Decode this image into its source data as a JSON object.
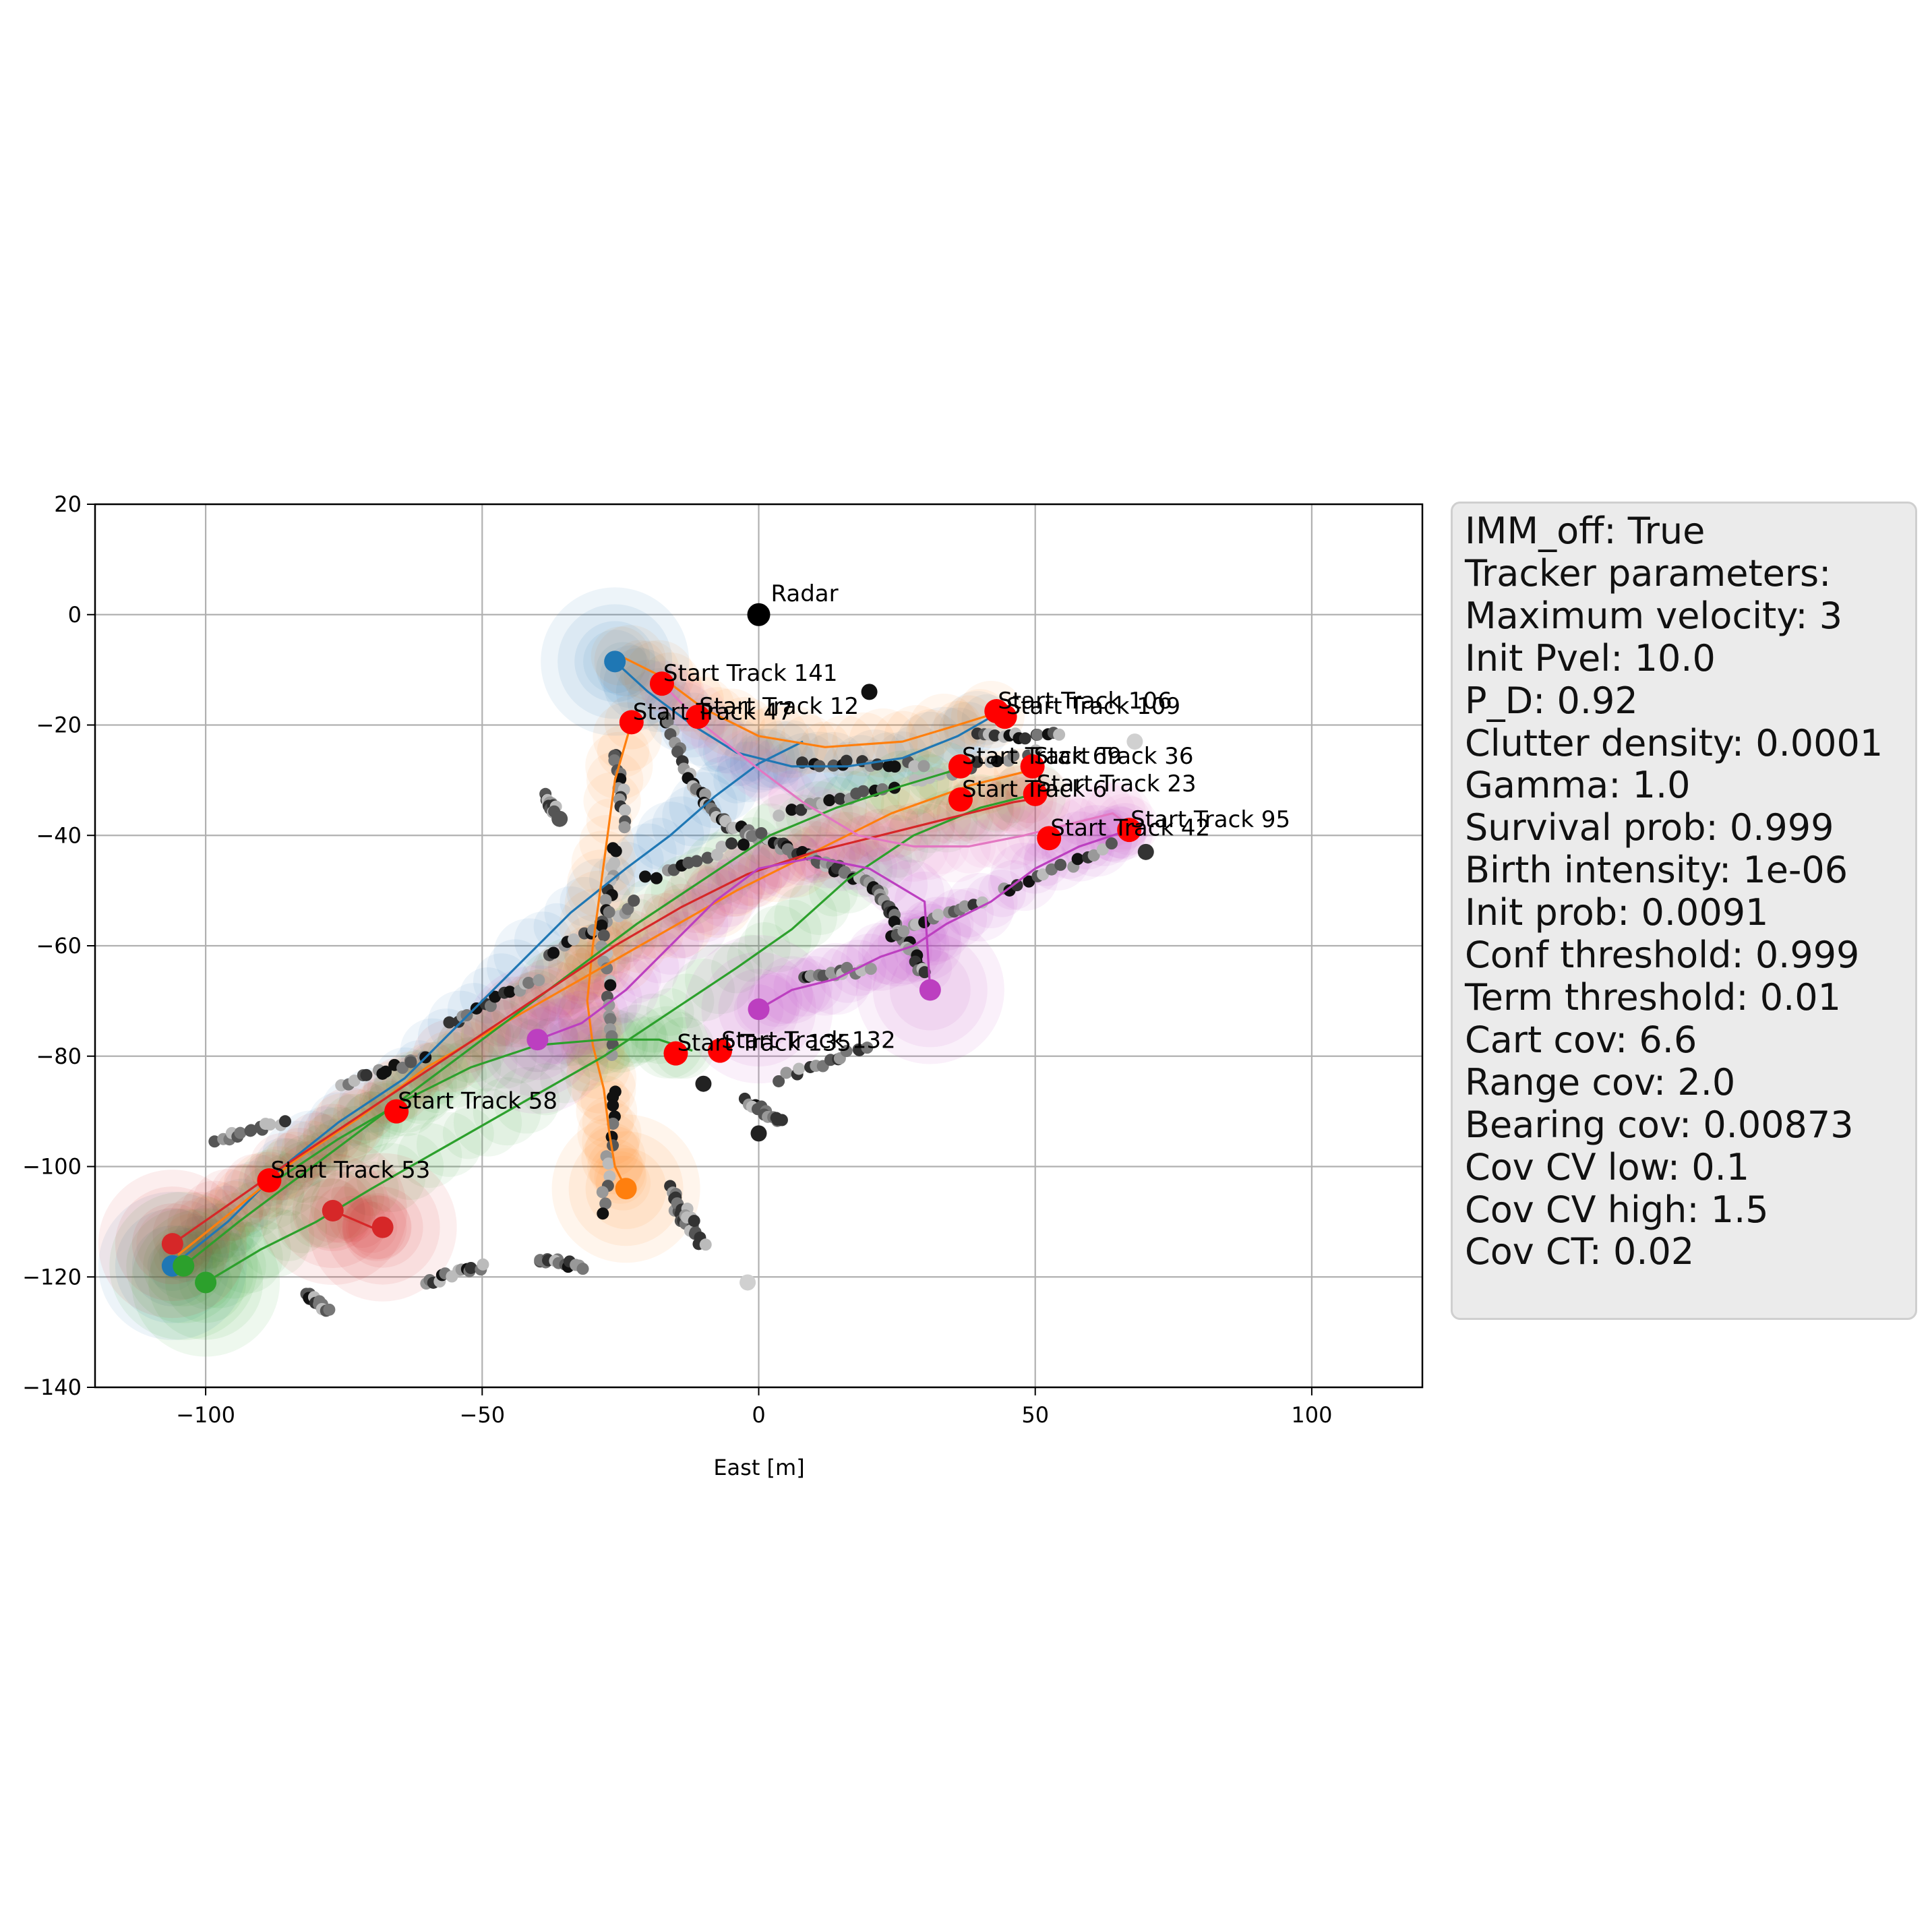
{
  "chart_data": {
    "type": "scatter",
    "xlabel": "East [m]",
    "ylabel": "",
    "xlim": [
      -120,
      120
    ],
    "ylim": [
      -140,
      20
    ],
    "xticks": [
      -100,
      -50,
      0,
      50,
      100
    ],
    "yticks": [
      20,
      0,
      -20,
      -40,
      -60,
      -80,
      -100,
      -120,
      -140
    ],
    "xtick_labels": [
      "−100",
      "−50",
      "0",
      "50",
      "100"
    ],
    "ytick_labels": [
      "20",
      "0",
      "−20",
      "−40",
      "−60",
      "−80",
      "−100",
      "−120",
      "−140"
    ],
    "grid": true,
    "radar": {
      "x": 0,
      "y": 0,
      "label": "Radar"
    },
    "track_starts": [
      {
        "label": "Start Track 141",
        "x": -17.5,
        "y": -12.5
      },
      {
        "label": "Start Track 47",
        "x": -23,
        "y": -19.5
      },
      {
        "label": "Start Track 12",
        "x": -11,
        "y": -18.5
      },
      {
        "label": "Start Track 106",
        "x": 43,
        "y": -17.5
      },
      {
        "label": "Start Track 109",
        "x": 44.5,
        "y": -18.5
      },
      {
        "label": "Start Track 69",
        "x": 36.5,
        "y": -27.5
      },
      {
        "label": "Start Track 36",
        "x": 49.5,
        "y": -27.5
      },
      {
        "label": "Start Track 23",
        "x": 50,
        "y": -32.5
      },
      {
        "label": "Start Track 6",
        "x": 36.5,
        "y": -33.5
      },
      {
        "label": "Start Track 95",
        "x": 67,
        "y": -39
      },
      {
        "label": "Start Track 42",
        "x": 52.5,
        "y": -40.5
      },
      {
        "label": "Start Track 132",
        "x": -7,
        "y": -79
      },
      {
        "label": "Start Track 135",
        "x": -15,
        "y": -79.5
      },
      {
        "label": "Start Track 58",
        "x": -65.5,
        "y": -90
      },
      {
        "label": "Start Track 53",
        "x": -88.5,
        "y": -102.5
      }
    ],
    "tracks": [
      {
        "color": "#1f77b4",
        "points": [
          [
            -26,
            -8.5
          ],
          [
            -20,
            -14
          ],
          [
            -12,
            -20
          ],
          [
            -4,
            -25
          ],
          [
            6,
            -27.5
          ],
          [
            16,
            -27.5
          ],
          [
            26,
            -26
          ],
          [
            36,
            -22
          ],
          [
            43,
            -18
          ]
        ]
      },
      {
        "color": "#1f77b4",
        "points": [
          [
            -106,
            -118
          ],
          [
            -96,
            -110
          ],
          [
            -86,
            -100
          ],
          [
            -76,
            -92
          ],
          [
            -64,
            -84
          ],
          [
            -54,
            -74
          ],
          [
            -44,
            -64
          ],
          [
            -34,
            -54
          ],
          [
            -24,
            -46
          ],
          [
            -16,
            -40
          ],
          [
            -8,
            -33
          ],
          [
            0,
            -27
          ],
          [
            8,
            -23
          ]
        ]
      },
      {
        "color": "#ff7f0e",
        "points": [
          [
            -25,
            -7.5
          ],
          [
            -18,
            -11
          ],
          [
            -10,
            -17
          ],
          [
            0,
            -22
          ],
          [
            12,
            -24
          ],
          [
            26,
            -23
          ],
          [
            36,
            -20
          ],
          [
            44,
            -17.5
          ]
        ]
      },
      {
        "color": "#ff7f0e",
        "points": [
          [
            -23,
            -19.5
          ],
          [
            -26,
            -30
          ],
          [
            -28,
            -45
          ],
          [
            -30,
            -60
          ],
          [
            -31,
            -70
          ],
          [
            -30,
            -78
          ],
          [
            -28,
            -86
          ],
          [
            -27,
            -94
          ],
          [
            -26,
            -100
          ],
          [
            -24,
            -104
          ]
        ]
      },
      {
        "color": "#ff7f0e",
        "points": [
          [
            -105,
            -116
          ],
          [
            -95,
            -108
          ],
          [
            -84,
            -99
          ],
          [
            -72,
            -91
          ],
          [
            -60,
            -82
          ],
          [
            -46,
            -74
          ],
          [
            -32,
            -66
          ],
          [
            -18,
            -58
          ],
          [
            -4,
            -50
          ],
          [
            10,
            -43
          ],
          [
            24,
            -36
          ],
          [
            38,
            -31
          ],
          [
            50,
            -28
          ]
        ]
      },
      {
        "color": "#2ca02c",
        "points": [
          [
            -104,
            -118
          ],
          [
            -94,
            -110
          ],
          [
            -82,
            -101
          ],
          [
            -70,
            -92
          ],
          [
            -58,
            -83
          ],
          [
            -46,
            -74
          ],
          [
            -34,
            -65
          ],
          [
            -22,
            -56
          ],
          [
            -10,
            -48
          ],
          [
            2,
            -40
          ],
          [
            14,
            -35
          ],
          [
            26,
            -31
          ],
          [
            36,
            -28
          ]
        ]
      },
      {
        "color": "#2ca02c",
        "points": [
          [
            -100,
            -121
          ],
          [
            -90,
            -115
          ],
          [
            -80,
            -110
          ],
          [
            -70,
            -104
          ],
          [
            -56,
            -96
          ],
          [
            -42,
            -88
          ],
          [
            -28,
            -80
          ],
          [
            -16,
            -72
          ],
          [
            -4,
            -64
          ],
          [
            6,
            -57
          ],
          [
            16,
            -48
          ],
          [
            28,
            -40
          ],
          [
            40,
            -35
          ],
          [
            52,
            -32
          ]
        ]
      },
      {
        "color": "#2ca02c",
        "points": [
          [
            -88,
            -103
          ],
          [
            -76,
            -95
          ],
          [
            -64,
            -88
          ],
          [
            -52,
            -82
          ],
          [
            -40,
            -78
          ],
          [
            -28,
            -77
          ],
          [
            -18,
            -77
          ],
          [
            -12,
            -79
          ]
        ]
      },
      {
        "color": "#d62728",
        "points": [
          [
            -106,
            -114
          ],
          [
            -96,
            -107
          ],
          [
            -86,
            -100
          ],
          [
            -74,
            -92
          ],
          [
            -62,
            -84
          ],
          [
            -50,
            -76
          ],
          [
            -38,
            -68
          ],
          [
            -26,
            -60
          ],
          [
            -14,
            -53
          ],
          [
            -2,
            -47
          ],
          [
            10,
            -43
          ],
          [
            22,
            -40
          ],
          [
            34,
            -37
          ],
          [
            46,
            -34
          ],
          [
            52,
            -33
          ]
        ]
      },
      {
        "color": "#d62728",
        "points": [
          [
            -77,
            -108
          ],
          [
            -70,
            -111
          ],
          [
            -68,
            -111
          ]
        ]
      },
      {
        "color": "#e377c2",
        "points": [
          [
            -17,
            -13
          ],
          [
            -10,
            -20
          ],
          [
            0,
            -28
          ],
          [
            8,
            -34
          ],
          [
            18,
            -40
          ],
          [
            28,
            -42
          ],
          [
            38,
            -42
          ],
          [
            48,
            -40
          ],
          [
            56,
            -38
          ],
          [
            64,
            -36
          ],
          [
            68,
            -39
          ]
        ]
      },
      {
        "color": "#bc3fc0",
        "points": [
          [
            0,
            -71.5
          ],
          [
            6,
            -68
          ],
          [
            14,
            -66
          ],
          [
            22,
            -62
          ],
          [
            28,
            -60
          ],
          [
            34,
            -56
          ],
          [
            42,
            -52
          ],
          [
            50,
            -46
          ],
          [
            58,
            -42
          ],
          [
            64,
            -40
          ],
          [
            67,
            -39
          ]
        ]
      },
      {
        "color": "#bc3fc0",
        "points": [
          [
            -40,
            -77
          ],
          [
            -32,
            -74
          ],
          [
            -24,
            -68
          ],
          [
            -16,
            -60
          ],
          [
            -8,
            -52
          ],
          [
            0,
            -46
          ],
          [
            10,
            -44
          ],
          [
            20,
            -46
          ],
          [
            30,
            -52
          ],
          [
            31,
            -68
          ]
        ]
      }
    ],
    "track_end_markers": [
      {
        "color": "#1f77b4",
        "x": -26,
        "y": -8.5
      },
      {
        "color": "#1f77b4",
        "x": -106,
        "y": -118
      },
      {
        "color": "#ff7f0e",
        "x": -24,
        "y": -104
      },
      {
        "color": "#2ca02c",
        "x": -104,
        "y": -118
      },
      {
        "color": "#2ca02c",
        "x": -100,
        "y": -121
      },
      {
        "color": "#d62728",
        "x": -106,
        "y": -114
      },
      {
        "color": "#d62728",
        "x": -77,
        "y": -108
      },
      {
        "color": "#d62728",
        "x": -68,
        "y": -111
      },
      {
        "color": "#bc3fc0",
        "x": 31,
        "y": -68
      },
      {
        "color": "#bc3fc0",
        "x": 0,
        "y": -71.5
      },
      {
        "color": "#bc3fc0",
        "x": -40,
        "y": -77
      }
    ],
    "measurement_clusters": [
      {
        "x1": -17,
        "y1": -18,
        "x2": -12,
        "y2": -31
      },
      {
        "x1": -12,
        "y1": -31,
        "x2": -6,
        "y2": -38
      },
      {
        "x1": -6,
        "y1": -38,
        "x2": 4,
        "y2": -42
      },
      {
        "x1": 4,
        "y1": -42,
        "x2": 14,
        "y2": -46
      },
      {
        "x1": 14,
        "y1": -46,
        "x2": 22,
        "y2": -50
      },
      {
        "x1": 22,
        "y1": -50,
        "x2": 26,
        "y2": -58
      },
      {
        "x1": 26,
        "y1": -58,
        "x2": 30,
        "y2": -65
      },
      {
        "x1": -2,
        "y1": -88,
        "x2": 4,
        "y2": -92
      },
      {
        "x1": 4,
        "y1": -84,
        "x2": 20,
        "y2": -78
      },
      {
        "x1": -60,
        "y1": -121,
        "x2": -50,
        "y2": -118
      },
      {
        "x1": -40,
        "y1": -117,
        "x2": -32,
        "y2": -118
      },
      {
        "x1": -82,
        "y1": -123,
        "x2": -78,
        "y2": -126
      },
      {
        "x1": -15,
        "y1": -108,
        "x2": -10,
        "y2": -114
      },
      {
        "x1": -38,
        "y1": -33,
        "x2": -37,
        "y2": -36
      },
      {
        "x1": -98,
        "y1": -95,
        "x2": -86,
        "y2": -92
      },
      {
        "x1": -75,
        "y1": -85,
        "x2": -60,
        "y2": -80
      },
      {
        "x1": -56,
        "y1": -74,
        "x2": -40,
        "y2": -66
      },
      {
        "x1": -38,
        "y1": -62,
        "x2": -22,
        "y2": -52
      },
      {
        "x1": -20,
        "y1": -48,
        "x2": 0,
        "y2": -40
      },
      {
        "x1": 4,
        "y1": -36,
        "x2": 24,
        "y2": -31
      },
      {
        "x1": 28,
        "y1": -30,
        "x2": 50,
        "y2": -25
      },
      {
        "x1": 8,
        "y1": -66,
        "x2": 20,
        "y2": -64
      },
      {
        "x1": 24,
        "y1": -58,
        "x2": 40,
        "y2": -52
      },
      {
        "x1": 44,
        "y1": -50,
        "x2": 64,
        "y2": -42
      },
      {
        "x1": 8,
        "y1": -27,
        "x2": 30,
        "y2": -27
      },
      {
        "x1": 40,
        "y1": -22,
        "x2": 54,
        "y2": -22
      },
      {
        "x1": -26,
        "y1": -25,
        "x2": -24,
        "y2": -38
      },
      {
        "x1": -26,
        "y1": -42,
        "x2": -28,
        "y2": -58
      },
      {
        "x1": -28,
        "y1": -60,
        "x2": -26,
        "y2": -80
      },
      {
        "x1": -26,
        "y1": -86,
        "x2": -28,
        "y2": -108
      },
      {
        "x1": -16,
        "y1": -104,
        "x2": -12,
        "y2": -110
      }
    ],
    "isolated_points": [
      {
        "x": 20,
        "y": -14,
        "color": "#111111"
      },
      {
        "x": 68,
        "y": -23,
        "color": "#d0d0d0"
      },
      {
        "x": 70,
        "y": -43,
        "color": "#333333"
      },
      {
        "x": -2,
        "y": -121,
        "color": "#d0d0d0"
      },
      {
        "x": -10,
        "y": -85,
        "color": "#222222"
      },
      {
        "x": 0,
        "y": -94,
        "color": "#222222"
      },
      {
        "x": -36,
        "y": -37,
        "color": "#555555"
      }
    ]
  },
  "param_box": {
    "lines": [
      "IMM_off: True",
      "Tracker parameters:",
      "Maximum velocity: 3",
      "Init Pvel: 10.0",
      "P_D: 0.92",
      "Clutter density: 0.0001",
      "Gamma: 1.0",
      "Survival prob: 0.999",
      "Birth intensity: 1e-06",
      "Init prob: 0.0091",
      "Conf threshold: 0.999",
      "Term threshold: 0.01",
      "Cart cov: 6.6",
      "Range cov: 2.0",
      "Bearing cov: 0.00873",
      "Cov CV low: 0.1",
      "Cov CV high: 1.5",
      "Cov CT: 0.02"
    ]
  }
}
